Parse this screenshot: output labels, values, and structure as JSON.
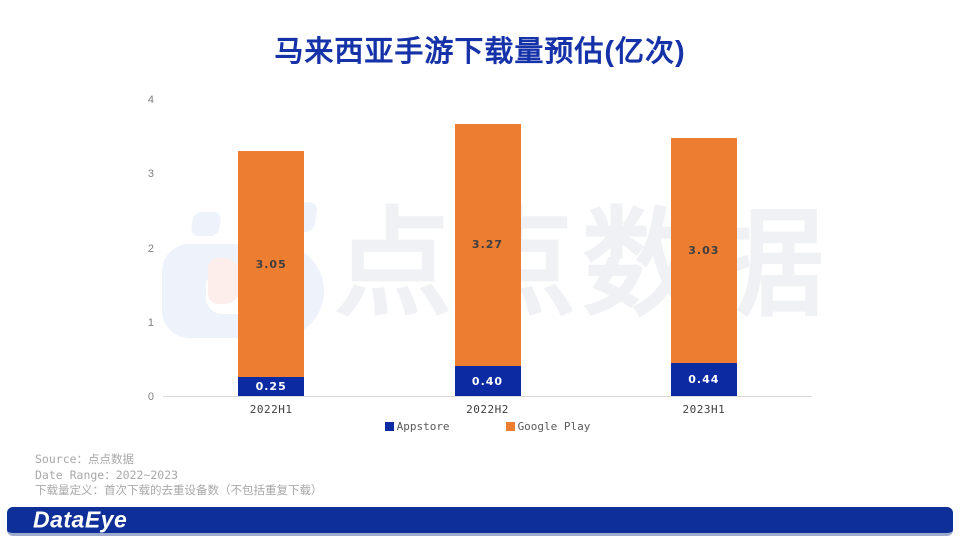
{
  "title": "马来西亚手游下载量预估(亿次)",
  "watermark": {
    "text": "点点数据"
  },
  "chart_data": {
    "type": "bar",
    "stacked": true,
    "title": "马来西亚手游下载量预估(亿次)",
    "categories": [
      "2022H1",
      "2022H2",
      "2023H1"
    ],
    "series": [
      {
        "name": "Appstore",
        "color": "#0c2ba3",
        "label_color": "#ffffff",
        "values": [
          0.25,
          0.4,
          0.44
        ]
      },
      {
        "name": "Google Play",
        "color": "#ed7d31",
        "label_color": "#3f3f3f",
        "values": [
          3.05,
          3.27,
          3.03
        ]
      }
    ],
    "totals": [
      3.3,
      3.67,
      3.47
    ],
    "ylim": [
      0,
      4
    ],
    "yticks": [
      0,
      1,
      2,
      3,
      4
    ],
    "grid": false,
    "legend_position": "bottom"
  },
  "source_notes": {
    "line1": "Source：点点数据",
    "line2": "Date Range：2022~2023",
    "line3": "下载量定义：首次下载的去重设备数（不包括重复下载）"
  },
  "footer": {
    "logo": "DataEye"
  },
  "colors": {
    "title_blue": "#1632a8",
    "appstore_blue": "#0c2ba3",
    "google_play_orange": "#ed7d31",
    "footer_bar": "#0e2f97",
    "axis_line": "#d9d9d9",
    "source_text": "#a8a8a8",
    "watermark_text": "#f0f1f4"
  }
}
